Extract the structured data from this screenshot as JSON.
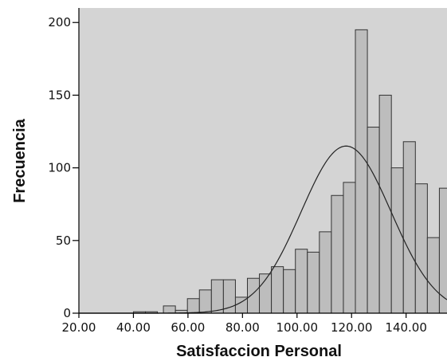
{
  "chart_data": {
    "type": "bar",
    "subtype": "histogram",
    "xlabel": "Satisfaccion Personal",
    "ylabel": "Frecuencia",
    "x_ticks": [
      "20.00",
      "40.00",
      "60.00",
      "80.00",
      "100.00",
      "120.00",
      "140.00"
    ],
    "y_ticks": [
      "0",
      "50",
      "100",
      "150",
      "200"
    ],
    "xlim": [
      20,
      155
    ],
    "ylim": [
      0,
      210
    ],
    "bin_width": 4.4,
    "bins": [
      {
        "start": 40.0,
        "count": 1
      },
      {
        "start": 44.4,
        "count": 1
      },
      {
        "start": 51.0,
        "count": 5
      },
      {
        "start": 55.4,
        "count": 2
      },
      {
        "start": 59.8,
        "count": 10
      },
      {
        "start": 64.2,
        "count": 16
      },
      {
        "start": 68.6,
        "count": 23
      },
      {
        "start": 73.0,
        "count": 23
      },
      {
        "start": 77.4,
        "count": 11
      },
      {
        "start": 81.8,
        "count": 24
      },
      {
        "start": 86.2,
        "count": 27
      },
      {
        "start": 90.6,
        "count": 32
      },
      {
        "start": 95.0,
        "count": 30
      },
      {
        "start": 99.4,
        "count": 44
      },
      {
        "start": 103.8,
        "count": 42
      },
      {
        "start": 108.2,
        "count": 56
      },
      {
        "start": 112.6,
        "count": 81
      },
      {
        "start": 117.0,
        "count": 90
      },
      {
        "start": 121.4,
        "count": 195
      },
      {
        "start": 125.8,
        "count": 128
      },
      {
        "start": 130.2,
        "count": 150
      },
      {
        "start": 134.6,
        "count": 100
      },
      {
        "start": 139.0,
        "count": 118
      },
      {
        "start": 143.4,
        "count": 89
      },
      {
        "start": 147.8,
        "count": 52
      },
      {
        "start": 152.2,
        "count": 86
      }
    ],
    "normal_curve": {
      "mean": 118,
      "sd": 16.5,
      "peak": 115
    },
    "colors": {
      "plot_background": "#d4d4d4",
      "bar_fill": "#bdbdbd",
      "bar_stroke": "#333333",
      "curve": "#222222"
    }
  }
}
